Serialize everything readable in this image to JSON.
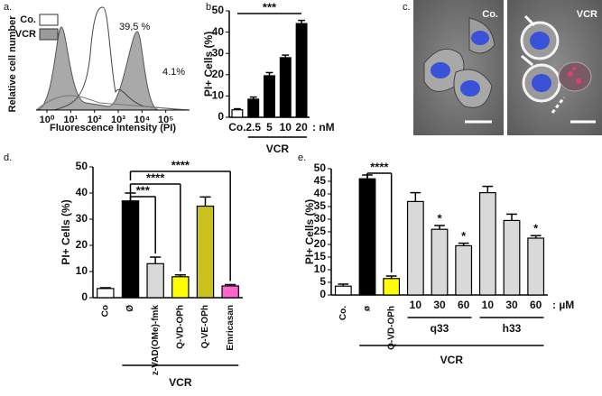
{
  "panel_labels": [
    "a.",
    "b.",
    "c.",
    "d.",
    "e."
  ],
  "chart_data": [
    {
      "type": "flow",
      "xlabel": "Fluorescence Intensity (PI)",
      "ylabel": "Relative cell number",
      "log_x": true,
      "xlim": [
        0.35,
        1000000
      ],
      "xticks": [
        {
          "value": 1,
          "label": "10⁰"
        },
        {
          "value": 10,
          "label": "10¹"
        },
        {
          "value": 100,
          "label": "10²"
        },
        {
          "value": 1000,
          "label": "10³"
        },
        {
          "value": 10000,
          "label": "10⁴"
        },
        {
          "value": 100000,
          "label": "10⁵"
        }
      ],
      "legend": [
        {
          "name": "Co.",
          "color": "#ffffff"
        },
        {
          "name": "VCR",
          "color": "#9a9a9a"
        }
      ],
      "annotations": [
        "39,5 %",
        "4.1%"
      ]
    },
    {
      "type": "bar",
      "ylabel": "PI+ Cells (%)",
      "categories": [
        "Co.",
        "2.5",
        "5",
        "10",
        "20"
      ],
      "values": [
        3.5,
        8.5,
        19.5,
        28,
        44
      ],
      "errors": [
        0.5,
        1,
        1.5,
        1.2,
        1.5
      ],
      "colors": [
        "#ffffff",
        "#000000",
        "#000000",
        "#000000",
        "#000000"
      ],
      "ylim": [
        0,
        50
      ],
      "yticks": [
        0,
        10,
        20,
        30,
        40,
        50
      ],
      "unit": ": nM",
      "annotations": [
        "***"
      ],
      "groups": [
        "VCR"
      ]
    },
    {
      "type": "image",
      "labels": [
        "Co.",
        "VCR"
      ]
    },
    {
      "type": "bar",
      "ylabel": "PI+ Cells (%)",
      "categories": [
        "Co",
        "Ø",
        "z-VAD(OMe)-fmk",
        "Q-VD-OPh",
        "Q-VE-OPh",
        "Emricasan"
      ],
      "values": [
        3.5,
        37,
        13,
        8,
        35,
        4.5
      ],
      "errors": [
        0.3,
        3,
        2.5,
        0.7,
        3.5,
        0.5
      ],
      "colors": [
        "#ffffff",
        "#000000",
        "#d9d9d9",
        "#ffff00",
        "#c9c21e",
        "#ff66cc"
      ],
      "ylim": [
        0,
        50
      ],
      "yticks": [
        0,
        10,
        20,
        30,
        40,
        50
      ],
      "annotations": [
        "***",
        "****",
        "****"
      ],
      "groups": [
        "VCR"
      ]
    },
    {
      "type": "bar",
      "ylabel": "PI+ Cells (%)",
      "categories": [
        "Co.",
        "ø",
        "Q-VD-OPh",
        "10",
        "30",
        "60",
        "10",
        "30",
        "60"
      ],
      "values": [
        3.5,
        46,
        6.5,
        37,
        26,
        19.5,
        40.5,
        29.5,
        22.5
      ],
      "errors": [
        0.8,
        1.5,
        1,
        3.5,
        1.5,
        1,
        2.5,
        2.5,
        1
      ],
      "colors": [
        "#ffffff",
        "#000000",
        "#ffff00",
        "#d9d9d9",
        "#d9d9d9",
        "#d9d9d9",
        "#d9d9d9",
        "#d9d9d9",
        "#d9d9d9"
      ],
      "ylim": [
        0,
        50
      ],
      "yticks": [
        0,
        5,
        10,
        15,
        20,
        25,
        30,
        35,
        40,
        45,
        50
      ],
      "unit": ": µM",
      "annotations": [
        "****",
        "*",
        "*",
        "*"
      ],
      "groups": [
        "q33",
        "h33",
        "VCR"
      ]
    }
  ]
}
